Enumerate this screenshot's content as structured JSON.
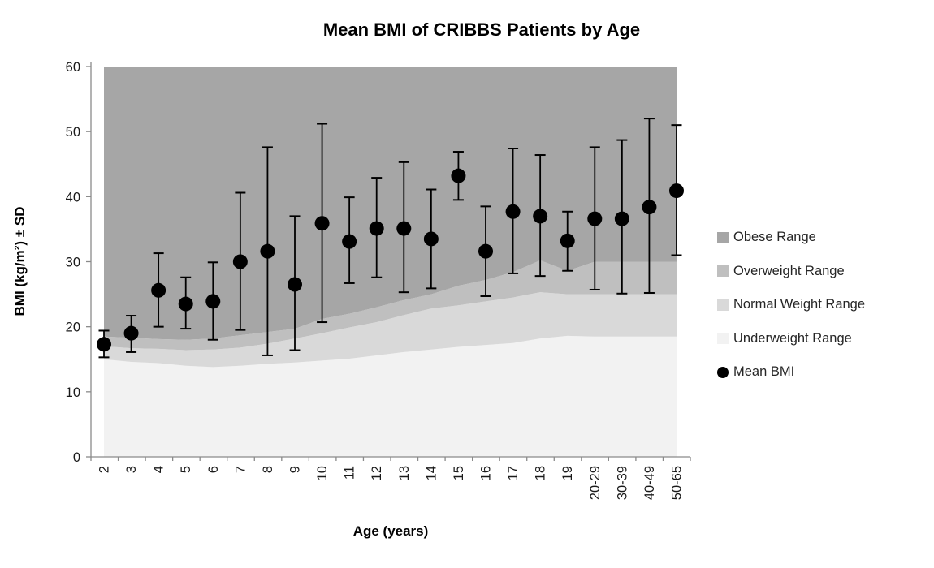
{
  "title": "Mean BMI of CRIBBS Patients by Age",
  "chart_data": {
    "type": "scatter",
    "title": "Mean BMI of CRIBBS Patients by Age",
    "xlabel": "Age (years)",
    "ylabel": "BMI (kg/m²) ± SD",
    "ylim": [
      0,
      60
    ],
    "y_ticks": [
      0,
      10,
      20,
      30,
      40,
      50,
      60
    ],
    "grid": false,
    "legend_position": "right",
    "categories": [
      "2",
      "3",
      "4",
      "5",
      "6",
      "7",
      "8",
      "9",
      "10",
      "11",
      "12",
      "13",
      "14",
      "15",
      "16",
      "17",
      "18",
      "19",
      "20-29",
      "30-39",
      "40-49",
      "50-65"
    ],
    "series": [
      {
        "name": "Mean BMI",
        "type": "scatter-with-error-bars",
        "values": [
          17.3,
          19.0,
          25.6,
          23.5,
          23.9,
          30.0,
          31.6,
          26.5,
          35.9,
          33.1,
          35.1,
          35.1,
          33.5,
          43.2,
          31.6,
          37.7,
          37.0,
          33.2,
          36.6,
          36.6,
          38.4,
          40.9
        ],
        "upper": [
          19.4,
          21.7,
          31.3,
          27.6,
          29.9,
          40.6,
          47.6,
          37.0,
          51.2,
          39.9,
          42.9,
          45.3,
          41.1,
          46.9,
          38.5,
          47.4,
          46.4,
          37.7,
          47.6,
          48.7,
          52.0,
          51.0
        ],
        "lower": [
          15.3,
          16.1,
          20.0,
          19.7,
          18.0,
          19.5,
          15.6,
          16.4,
          20.7,
          26.7,
          27.6,
          25.3,
          25.9,
          39.5,
          24.7,
          28.2,
          27.8,
          28.6,
          25.7,
          25.1,
          25.2,
          31.0
        ]
      }
    ],
    "bands": [
      {
        "name": "Underweight Range",
        "color": "#f2f2f2",
        "upper": [
          15.0,
          14.6,
          14.4,
          14.0,
          13.8,
          14.0,
          14.3,
          14.5,
          14.8,
          15.1,
          15.6,
          16.1,
          16.5,
          16.9,
          17.2,
          17.5,
          18.2,
          18.6,
          18.5,
          18.5,
          18.5,
          18.5
        ]
      },
      {
        "name": "Normal Weight Range",
        "color": "#d9d9d9",
        "upper": [
          17.0,
          16.7,
          16.6,
          16.4,
          16.5,
          16.8,
          17.4,
          18.2,
          19.0,
          19.9,
          20.7,
          21.8,
          22.8,
          23.3,
          23.9,
          24.5,
          25.3,
          25.0,
          25.0,
          25.0,
          25.0,
          25.0
        ]
      },
      {
        "name": "Overweight Range",
        "color": "#bfbfbf",
        "upper": [
          18.5,
          18.3,
          18.1,
          18.0,
          18.2,
          18.7,
          19.2,
          19.7,
          21.2,
          22.0,
          23.0,
          24.1,
          25.0,
          26.3,
          27.2,
          28.4,
          30.2,
          28.6,
          30.0,
          30.0,
          30.0,
          30.0
        ]
      },
      {
        "name": "Obese Range",
        "color": "#a6a6a6",
        "upper_flat": 60
      }
    ],
    "legend": [
      {
        "label": "Obese Range",
        "color": "#a6a6a6",
        "marker": "square"
      },
      {
        "label": "Overweight Range",
        "color": "#bfbfbf",
        "marker": "square"
      },
      {
        "label": "Normal Weight Range",
        "color": "#d9d9d9",
        "marker": "square"
      },
      {
        "label": "Underweight Range",
        "color": "#f2f2f2",
        "marker": "square"
      },
      {
        "label": "Mean BMI",
        "color": "#000000",
        "marker": "circle"
      }
    ]
  },
  "colors": {
    "marker": "#000000",
    "error_bar": "#000000",
    "axis": "#8a8a8a",
    "tick_text": "#1a1a1a",
    "background": "#ffffff"
  }
}
